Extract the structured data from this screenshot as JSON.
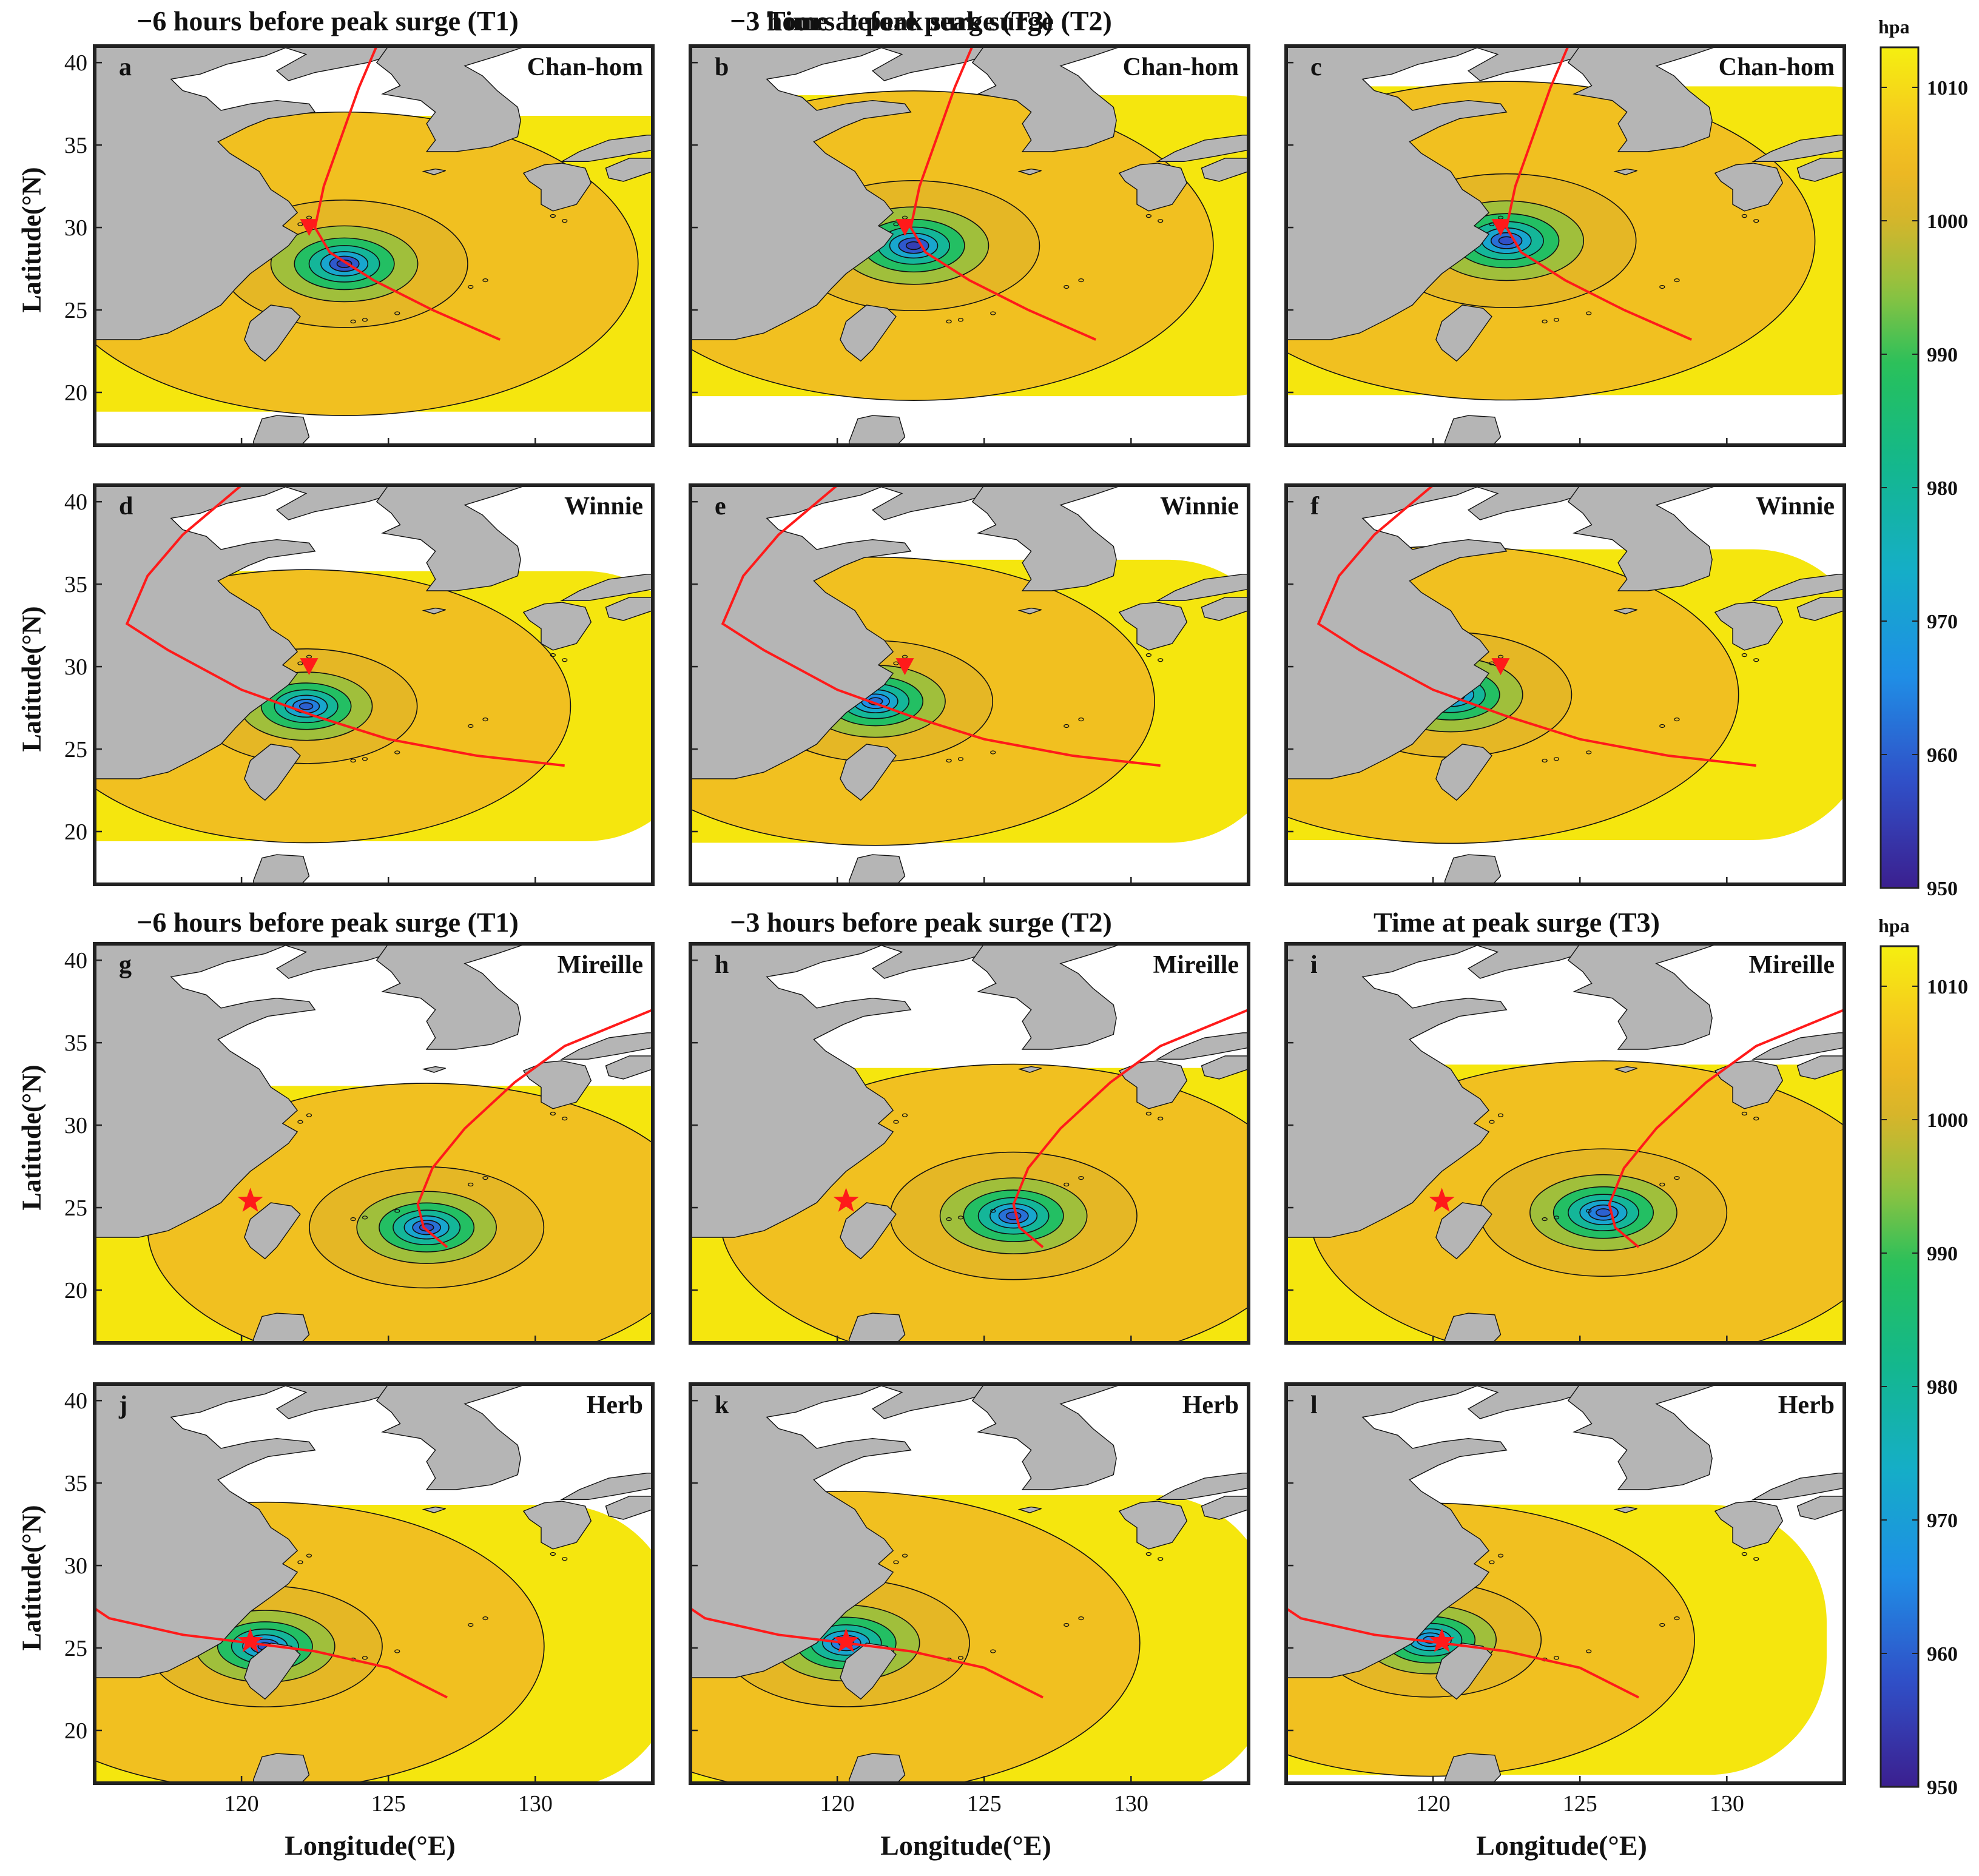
{
  "chart_data": {
    "type": "heatmap",
    "description_units": "sea-level pressure field",
    "colorbar": {
      "unit": "hpa",
      "range": [
        950,
        1013
      ],
      "ticks": [
        950,
        960,
        970,
        980,
        990,
        1000,
        1010
      ],
      "colors": [
        "#3b1f8f",
        "#2f5fd8",
        "#1c9be3",
        "#16b39a",
        "#23c268",
        "#8cc240",
        "#cdb52a",
        "#f0b722",
        "#f6d81a",
        "#f5ef10"
      ]
    },
    "axes": {
      "xlabel": "Longitude(°E)",
      "ylabel": "Latitude(°N)",
      "xlim": [
        115,
        134
      ],
      "ylim": [
        16.8,
        41
      ],
      "xticks": [
        120,
        125,
        130
      ],
      "yticks": [
        20,
        25,
        30,
        35,
        40
      ]
    },
    "column_titles": [
      "−6 hours before peak surge (T1)",
      "−3 hours before peak surge (T2)",
      "Time at peak surge (T3)"
    ],
    "markers": {
      "station_triangle": [
        122.3,
        30.0
      ],
      "station_star": [
        120.3,
        25.4
      ]
    },
    "tracks": {
      "Chan-hom": [
        [
          128.8,
          23.2
        ],
        [
          126.5,
          25.0
        ],
        [
          124.5,
          26.8
        ],
        [
          123.0,
          28.5
        ],
        [
          122.5,
          30.0
        ],
        [
          122.8,
          32.5
        ],
        [
          123.3,
          35.0
        ],
        [
          124.0,
          38.5
        ],
        [
          124.6,
          41.0
        ]
      ],
      "Winnie": [
        [
          131.0,
          24.0
        ],
        [
          128.0,
          24.6
        ],
        [
          125.0,
          25.6
        ],
        [
          122.5,
          27.0
        ],
        [
          120.0,
          28.6
        ],
        [
          117.5,
          31.0
        ],
        [
          116.1,
          32.6
        ],
        [
          116.8,
          35.5
        ],
        [
          118.0,
          38.0
        ],
        [
          120.0,
          41.0
        ]
      ],
      "Mireille": [
        [
          127.0,
          22.6
        ],
        [
          126.2,
          23.8
        ],
        [
          126.0,
          25.2
        ],
        [
          126.5,
          27.4
        ],
        [
          127.6,
          29.8
        ],
        [
          129.3,
          32.6
        ],
        [
          131.0,
          34.8
        ],
        [
          134.0,
          37.0
        ]
      ],
      "Herb": [
        [
          127.0,
          22.0
        ],
        [
          125.0,
          23.8
        ],
        [
          122.5,
          24.8
        ],
        [
          120.3,
          25.3
        ],
        [
          118.0,
          25.8
        ],
        [
          115.5,
          26.8
        ],
        [
          115.0,
          27.4
        ]
      ]
    },
    "panels": [
      {
        "letter": "a",
        "storm": "Chan-hom",
        "center": [
          123.5,
          27.8
        ],
        "center_p": 955,
        "outer_radius": 10.0
      },
      {
        "letter": "b",
        "storm": "Chan-hom",
        "center": [
          122.6,
          28.9
        ],
        "center_p": 955,
        "outer_radius": 10.2
      },
      {
        "letter": "c",
        "storm": "Chan-hom",
        "center": [
          122.5,
          29.2
        ],
        "center_p": 958,
        "outer_radius": 10.5
      },
      {
        "letter": "d",
        "storm": "Winnie",
        "center": [
          122.2,
          27.6
        ],
        "center_p": 960,
        "outer_radius": 9.0
      },
      {
        "letter": "e",
        "storm": "Winnie",
        "center": [
          121.3,
          27.9
        ],
        "center_p": 962,
        "outer_radius": 9.5
      },
      {
        "letter": "f",
        "storm": "Winnie",
        "center": [
          120.6,
          28.3
        ],
        "center_p": 965,
        "outer_radius": 9.8
      },
      {
        "letter": "g",
        "storm": "Mireille",
        "center": [
          126.3,
          23.8
        ],
        "center_p": 958,
        "outer_radius": 9.5
      },
      {
        "letter": "h",
        "storm": "Mireille",
        "center": [
          126.0,
          24.5
        ],
        "center_p": 958,
        "outer_radius": 10.0
      },
      {
        "letter": "i",
        "storm": "Mireille",
        "center": [
          125.8,
          24.7
        ],
        "center_p": 960,
        "outer_radius": 10.0
      },
      {
        "letter": "j",
        "storm": "Herb",
        "center": [
          120.8,
          25.1
        ],
        "center_p": 958,
        "outer_radius": 9.5
      },
      {
        "letter": "k",
        "storm": "Herb",
        "center": [
          120.3,
          25.3
        ],
        "center_p": 960,
        "outer_radius": 10.0
      },
      {
        "letter": "l",
        "storm": "Herb",
        "center": [
          119.9,
          25.5
        ],
        "center_p": 965,
        "outer_radius": 9.0
      }
    ]
  }
}
